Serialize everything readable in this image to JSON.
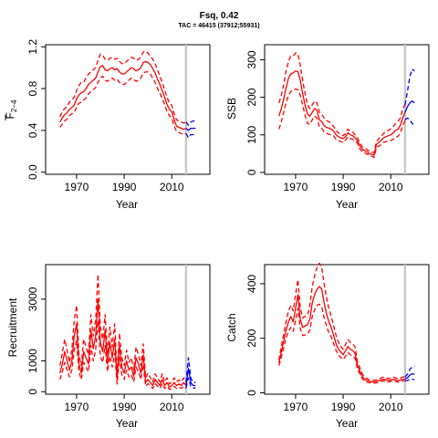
{
  "figure": {
    "title": "Fsq, 0.42",
    "subtitle": "TAC = 46415 (37912;55931)"
  },
  "colors": {
    "history": "#ff0000",
    "projection": "#0000ff",
    "divider": "#c8c8c8",
    "axis": "#000000"
  },
  "chart_data": [
    {
      "type": "line",
      "id": "fbar",
      "ylabel_main": "F",
      "ylabel_sub": "2−4",
      "xlabel": "Year",
      "xlim": [
        1957,
        2026
      ],
      "ylim": [
        -0.02,
        1.22
      ],
      "xticks": [
        1970,
        1990,
        2010
      ],
      "yticks": [
        0.0,
        0.4,
        0.8,
        1.2
      ],
      "ytick_labels": [
        "0.0",
        "0.4",
        "0.8",
        "1.2"
      ],
      "divider_year": 2016,
      "history": {
        "x": [
          1963,
          1964,
          1965,
          1966,
          1967,
          1968,
          1969,
          1970,
          1971,
          1972,
          1973,
          1974,
          1975,
          1976,
          1977,
          1978,
          1979,
          1980,
          1981,
          1982,
          1983,
          1984,
          1985,
          1986,
          1987,
          1988,
          1989,
          1990,
          1991,
          1992,
          1993,
          1994,
          1995,
          1996,
          1997,
          1998,
          1999,
          2000,
          2001,
          2002,
          2003,
          2004,
          2005,
          2006,
          2007,
          2008,
          2009,
          2010,
          2011,
          2012,
          2013,
          2014,
          2015,
          2016
        ],
        "mid": [
          0.48,
          0.52,
          0.55,
          0.57,
          0.6,
          0.62,
          0.64,
          0.7,
          0.74,
          0.76,
          0.77,
          0.8,
          0.84,
          0.86,
          0.88,
          0.9,
          0.96,
          1.01,
          1.02,
          0.98,
          0.97,
          0.99,
          1.0,
          0.98,
          0.99,
          0.96,
          0.94,
          0.94,
          0.96,
          0.98,
          1.0,
          0.99,
          0.97,
          0.98,
          1.0,
          1.05,
          1.06,
          1.05,
          1.03,
          0.99,
          0.95,
          0.89,
          0.84,
          0.78,
          0.72,
          0.65,
          0.6,
          0.58,
          0.5,
          0.44,
          0.43,
          0.42,
          0.41,
          0.42
        ],
        "upper": [
          0.53,
          0.58,
          0.61,
          0.63,
          0.67,
          0.69,
          0.72,
          0.78,
          0.83,
          0.86,
          0.86,
          0.9,
          0.94,
          0.96,
          0.98,
          1.0,
          1.07,
          1.13,
          1.12,
          1.08,
          1.07,
          1.09,
          1.1,
          1.08,
          1.09,
          1.06,
          1.04,
          1.04,
          1.06,
          1.08,
          1.1,
          1.09,
          1.07,
          1.08,
          1.1,
          1.15,
          1.16,
          1.14,
          1.11,
          1.08,
          1.04,
          0.98,
          0.92,
          0.86,
          0.79,
          0.72,
          0.66,
          0.64,
          0.56,
          0.5,
          0.49,
          0.48,
          0.47,
          0.48
        ],
        "lower": [
          0.43,
          0.46,
          0.49,
          0.51,
          0.54,
          0.56,
          0.57,
          0.62,
          0.66,
          0.67,
          0.69,
          0.71,
          0.75,
          0.77,
          0.79,
          0.81,
          0.86,
          0.9,
          0.92,
          0.88,
          0.87,
          0.89,
          0.9,
          0.88,
          0.89,
          0.86,
          0.84,
          0.84,
          0.86,
          0.88,
          0.9,
          0.89,
          0.87,
          0.88,
          0.9,
          0.95,
          0.96,
          0.96,
          0.94,
          0.9,
          0.86,
          0.8,
          0.76,
          0.7,
          0.65,
          0.58,
          0.54,
          0.52,
          0.44,
          0.39,
          0.38,
          0.37,
          0.36,
          0.37
        ]
      },
      "projection": {
        "x": [
          2016,
          2017,
          2018,
          2019,
          2020
        ],
        "mid": [
          0.42,
          0.4,
          0.42,
          0.42,
          0.42
        ],
        "upper": [
          0.48,
          0.45,
          0.48,
          0.49,
          0.49
        ],
        "lower": [
          0.37,
          0.33,
          0.36,
          0.36,
          0.36
        ]
      }
    },
    {
      "type": "line",
      "id": "ssb",
      "ylabel_main": "SSB",
      "ylabel_sub": "",
      "xlabel": "Year",
      "xlim": [
        1957,
        2026
      ],
      "ylim": [
        -5,
        340
      ],
      "xticks": [
        1970,
        1990,
        2010
      ],
      "yticks": [
        0,
        100,
        200,
        300
      ],
      "ytick_labels": [
        "0",
        "100",
        "200",
        "300"
      ],
      "divider_year": 2016,
      "history": {
        "x": [
          1963,
          1964,
          1965,
          1966,
          1967,
          1968,
          1969,
          1970,
          1971,
          1972,
          1973,
          1974,
          1975,
          1976,
          1977,
          1978,
          1979,
          1980,
          1981,
          1982,
          1983,
          1984,
          1985,
          1986,
          1987,
          1988,
          1989,
          1990,
          1991,
          1992,
          1993,
          1994,
          1995,
          1996,
          1997,
          1998,
          1999,
          2000,
          2001,
          2002,
          2003,
          2004,
          2005,
          2006,
          2007,
          2008,
          2009,
          2010,
          2011,
          2012,
          2013,
          2014,
          2015,
          2016
        ],
        "mid": [
          150,
          170,
          195,
          225,
          250,
          262,
          265,
          270,
          268,
          245,
          210,
          180,
          155,
          150,
          160,
          170,
          165,
          140,
          135,
          125,
          120,
          118,
          115,
          110,
          100,
          95,
          92,
          90,
          95,
          105,
          100,
          98,
          92,
          85,
          70,
          62,
          58,
          55,
          50,
          48,
          46,
          75,
          80,
          85,
          92,
          95,
          98,
          100,
          105,
          112,
          115,
          125,
          145,
          160
        ],
        "upper": [
          185,
          205,
          235,
          270,
          295,
          310,
          310,
          318,
          315,
          285,
          245,
          210,
          180,
          170,
          180,
          190,
          185,
          160,
          155,
          145,
          138,
          135,
          130,
          122,
          112,
          105,
          100,
          98,
          103,
          115,
          110,
          108,
          100,
          92,
          78,
          68,
          64,
          61,
          56,
          54,
          52,
          83,
          90,
          96,
          104,
          108,
          112,
          116,
          122,
          130,
          135,
          145,
          168,
          182
        ],
        "lower": [
          115,
          135,
          160,
          185,
          205,
          215,
          220,
          222,
          220,
          205,
          180,
          152,
          130,
          128,
          140,
          150,
          145,
          122,
          118,
          108,
          104,
          102,
          100,
          97,
          88,
          85,
          82,
          80,
          86,
          95,
          90,
          88,
          84,
          78,
          62,
          56,
          52,
          49,
          45,
          43,
          40,
          67,
          70,
          74,
          80,
          82,
          84,
          85,
          88,
          94,
          96,
          105,
          124,
          138
        ]
      },
      "projection": {
        "x": [
          2016,
          2017,
          2018,
          2019,
          2020
        ],
        "mid": [
          160,
          175,
          185,
          190,
          185
        ],
        "upper": [
          180,
          215,
          255,
          275,
          270
        ],
        "lower": [
          140,
          145,
          140,
          130,
          125
        ]
      }
    },
    {
      "type": "line",
      "id": "recruitment",
      "ylabel_main": "Recruitment",
      "ylabel_sub": "",
      "xlabel": "Year",
      "xlim": [
        1957,
        2026
      ],
      "ylim": [
        -80,
        4120
      ],
      "xticks": [
        1970,
        1990,
        2010
      ],
      "yticks": [
        0,
        1000,
        3000
      ],
      "ytick_labels": [
        "0",
        "1000",
        "3000"
      ],
      "divider_year": 2016,
      "history": {
        "x": [
          1963,
          1964,
          1965,
          1966,
          1967,
          1968,
          1969,
          1970,
          1971,
          1972,
          1973,
          1974,
          1975,
          1976,
          1977,
          1978,
          1979,
          1980,
          1981,
          1982,
          1983,
          1984,
          1985,
          1986,
          1987,
          1988,
          1989,
          1990,
          1991,
          1992,
          1993,
          1994,
          1995,
          1996,
          1997,
          1998,
          1999,
          2000,
          2001,
          2002,
          2003,
          2004,
          2005,
          2006,
          2007,
          2008,
          2009,
          2010,
          2011,
          2012,
          2013,
          2014,
          2015,
          2016
        ],
        "mid": [
          600,
          900,
          1300,
          1000,
          700,
          1000,
          1800,
          2200,
          900,
          600,
          1300,
          1100,
          900,
          2000,
          1400,
          1800,
          3000,
          1600,
          1300,
          2000,
          900,
          1600,
          1100,
          1700,
          400,
          1500,
          800,
          600,
          1000,
          700,
          800,
          500,
          1100,
          900,
          600,
          1200,
          300,
          400,
          300,
          200,
          400,
          300,
          200,
          400,
          200,
          300,
          150,
          200,
          300,
          200,
          250,
          200,
          300,
          200
        ],
        "upper": [
          850,
          1250,
          1700,
          1350,
          950,
          1350,
          2300,
          2800,
          1200,
          850,
          1700,
          1450,
          1200,
          2500,
          1800,
          2300,
          3800,
          2100,
          1700,
          2500,
          1200,
          2100,
          1450,
          2200,
          600,
          1900,
          1100,
          850,
          1350,
          950,
          1100,
          700,
          1450,
          1200,
          850,
          1550,
          450,
          600,
          450,
          320,
          580,
          450,
          320,
          580,
          320,
          450,
          250,
          320,
          450,
          320,
          380,
          320,
          450,
          320
        ],
        "lower": [
          400,
          650,
          950,
          700,
          480,
          700,
          1350,
          1650,
          650,
          400,
          950,
          800,
          650,
          1500,
          1000,
          1350,
          2300,
          1150,
          950,
          1500,
          650,
          1150,
          800,
          1250,
          250,
          1100,
          550,
          400,
          700,
          480,
          550,
          320,
          800,
          650,
          400,
          880,
          180,
          260,
          180,
          110,
          260,
          180,
          110,
          260,
          110,
          180,
          80,
          110,
          180,
          110,
          150,
          110,
          180,
          110
        ]
      },
      "projection": {
        "x": [
          2016,
          2017,
          2018,
          2019,
          2020
        ],
        "mid": [
          200,
          750,
          300,
          200,
          200
        ],
        "upper": [
          300,
          1100,
          450,
          300,
          300
        ],
        "lower": [
          120,
          450,
          180,
          120,
          120
        ]
      }
    },
    {
      "type": "line",
      "id": "catch",
      "ylabel_main": "Catch",
      "ylabel_sub": "",
      "xlabel": "Year",
      "xlim": [
        1957,
        2026
      ],
      "ylim": [
        -5,
        470
      ],
      "xticks": [
        1970,
        1990,
        2010
      ],
      "yticks": [
        0,
        200,
        400
      ],
      "ytick_labels": [
        "0",
        "200",
        "400"
      ],
      "divider_year": 2016,
      "history": {
        "x": [
          1963,
          1964,
          1965,
          1966,
          1967,
          1968,
          1969,
          1970,
          1971,
          1972,
          1973,
          1974,
          1975,
          1976,
          1977,
          1978,
          1979,
          1980,
          1981,
          1982,
          1983,
          1984,
          1985,
          1986,
          1987,
          1988,
          1989,
          1990,
          1991,
          1992,
          1993,
          1994,
          1995,
          1996,
          1997,
          1998,
          1999,
          2000,
          2001,
          2002,
          2003,
          2004,
          2005,
          2006,
          2007,
          2008,
          2009,
          2010,
          2011,
          2012,
          2013,
          2014,
          2015,
          2016
        ],
        "mid": [
          110,
          150,
          190,
          230,
          260,
          280,
          260,
          310,
          360,
          270,
          240,
          245,
          250,
          270,
          330,
          360,
          380,
          390,
          380,
          330,
          290,
          260,
          240,
          210,
          180,
          160,
          150,
          140,
          155,
          170,
          160,
          155,
          145,
          100,
          80,
          60,
          50,
          45,
          42,
          40,
          40,
          42,
          45,
          48,
          50,
          48,
          45,
          48,
          50,
          48,
          45,
          47,
          50,
          50
        ],
        "upper": [
          120,
          170,
          215,
          260,
          300,
          320,
          300,
          360,
          415,
          310,
          275,
          280,
          285,
          320,
          390,
          430,
          460,
          475,
          460,
          400,
          350,
          310,
          280,
          245,
          210,
          185,
          170,
          160,
          178,
          195,
          185,
          180,
          168,
          115,
          92,
          70,
          58,
          52,
          48,
          46,
          46,
          48,
          52,
          55,
          58,
          55,
          52,
          55,
          58,
          55,
          52,
          54,
          58,
          58
        ],
        "lower": [
          100,
          130,
          165,
          200,
          225,
          240,
          225,
          265,
          310,
          235,
          210,
          212,
          215,
          230,
          280,
          305,
          320,
          325,
          315,
          275,
          245,
          220,
          205,
          180,
          155,
          138,
          130,
          122,
          135,
          148,
          140,
          135,
          127,
          88,
          70,
          52,
          43,
          39,
          37,
          35,
          35,
          37,
          39,
          42,
          44,
          42,
          39,
          42,
          44,
          42,
          39,
          41,
          44,
          44
        ]
      },
      "projection": {
        "x": [
          2016,
          2017,
          2018,
          2019,
          2020
        ],
        "mid": [
          50,
          55,
          65,
          70,
          68
        ],
        "upper": [
          58,
          68,
          85,
          95,
          97
        ],
        "lower": [
          44,
          45,
          50,
          50,
          48
        ]
      }
    }
  ]
}
